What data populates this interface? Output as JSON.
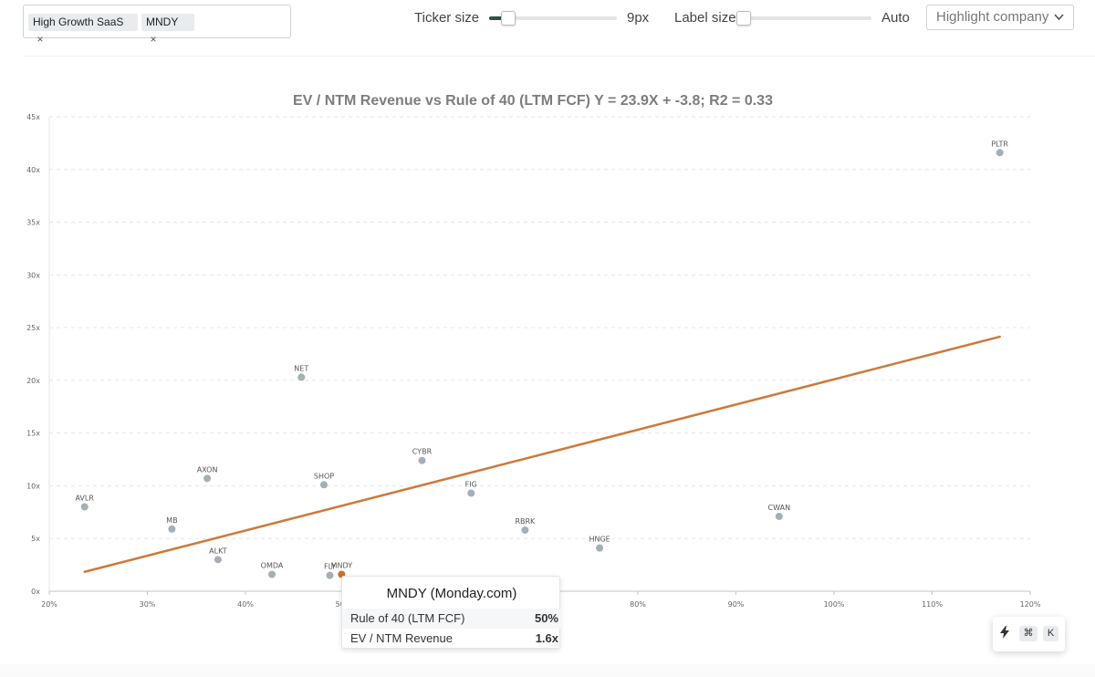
{
  "filters": {
    "tags": [
      {
        "label": "High Growth SaaS",
        "remove": "×"
      },
      {
        "label": "MNDY",
        "remove": "×"
      }
    ]
  },
  "controls": {
    "ticker_size_label": "Ticker size",
    "ticker_size_value": "9px",
    "ticker_size_level": 0.15,
    "label_size_label": "Label size",
    "label_size_value": "Auto",
    "label_size_level": 0.0,
    "highlight_placeholder": "Highlight company",
    "highlight_icon": "chevron-down-icon"
  },
  "colors": {
    "point": "#a3b0b5",
    "highlight": "#cd6e2c",
    "trendline": "#cd7a3c",
    "grid": "#e4e6e9"
  },
  "chart_data": {
    "type": "scatter",
    "title": "EV / NTM Revenue vs Rule of 40 (LTM FCF) Y = 23.9X + -3.8; R2 = 0.33",
    "xlabel": "",
    "ylabel": "",
    "xlim": [
      20,
      120
    ],
    "ylim": [
      0,
      45
    ],
    "x_ticks": [
      "20%",
      "30%",
      "40%",
      "50%",
      "60%",
      "70%",
      "80%",
      "90%",
      "100%",
      "110%",
      "120%"
    ],
    "y_ticks": [
      "0x",
      "5x",
      "10x",
      "15x",
      "20x",
      "25x",
      "30x",
      "35x",
      "40x",
      "45x"
    ],
    "grid": true,
    "points": [
      {
        "label": "AVLR",
        "x": 23.6,
        "y": 8.0
      },
      {
        "label": "MB",
        "x": 32.5,
        "y": 5.9
      },
      {
        "label": "AXON",
        "x": 36.1,
        "y": 10.7
      },
      {
        "label": "ALKT",
        "x": 37.2,
        "y": 3.0
      },
      {
        "label": "OMDA",
        "x": 42.7,
        "y": 1.6
      },
      {
        "label": "NET",
        "x": 45.7,
        "y": 20.3
      },
      {
        "label": "SHOP",
        "x": 48.0,
        "y": 10.1
      },
      {
        "label": "FLY",
        "x": 48.6,
        "y": 1.5
      },
      {
        "label": "MNDY",
        "x": 49.8,
        "y": 1.6,
        "highlight": true
      },
      {
        "label": "CYBR",
        "x": 58.0,
        "y": 12.4
      },
      {
        "label": "FIG",
        "x": 63.0,
        "y": 9.3
      },
      {
        "label": "RBRK",
        "x": 68.5,
        "y": 5.8
      },
      {
        "label": "HNGE",
        "x": 76.1,
        "y": 4.1
      },
      {
        "label": "CWAN",
        "x": 94.4,
        "y": 7.1
      },
      {
        "label": "PLTR",
        "x": 116.9,
        "y": 41.6
      }
    ],
    "trendline": {
      "slope": 23.9,
      "intercept": -3.8,
      "x_from": 23.6,
      "x_to": 116.9
    }
  },
  "tooltip": {
    "title": "MNDY (Monday.com)",
    "rows": [
      {
        "key": "Rule of 40 (LTM FCF)",
        "value": "50%"
      },
      {
        "key": "EV / NTM Revenue",
        "value": "1.6x"
      }
    ]
  },
  "shortcut": {
    "bolt_icon": "bolt-icon",
    "keys": [
      "⌘",
      "K"
    ]
  }
}
